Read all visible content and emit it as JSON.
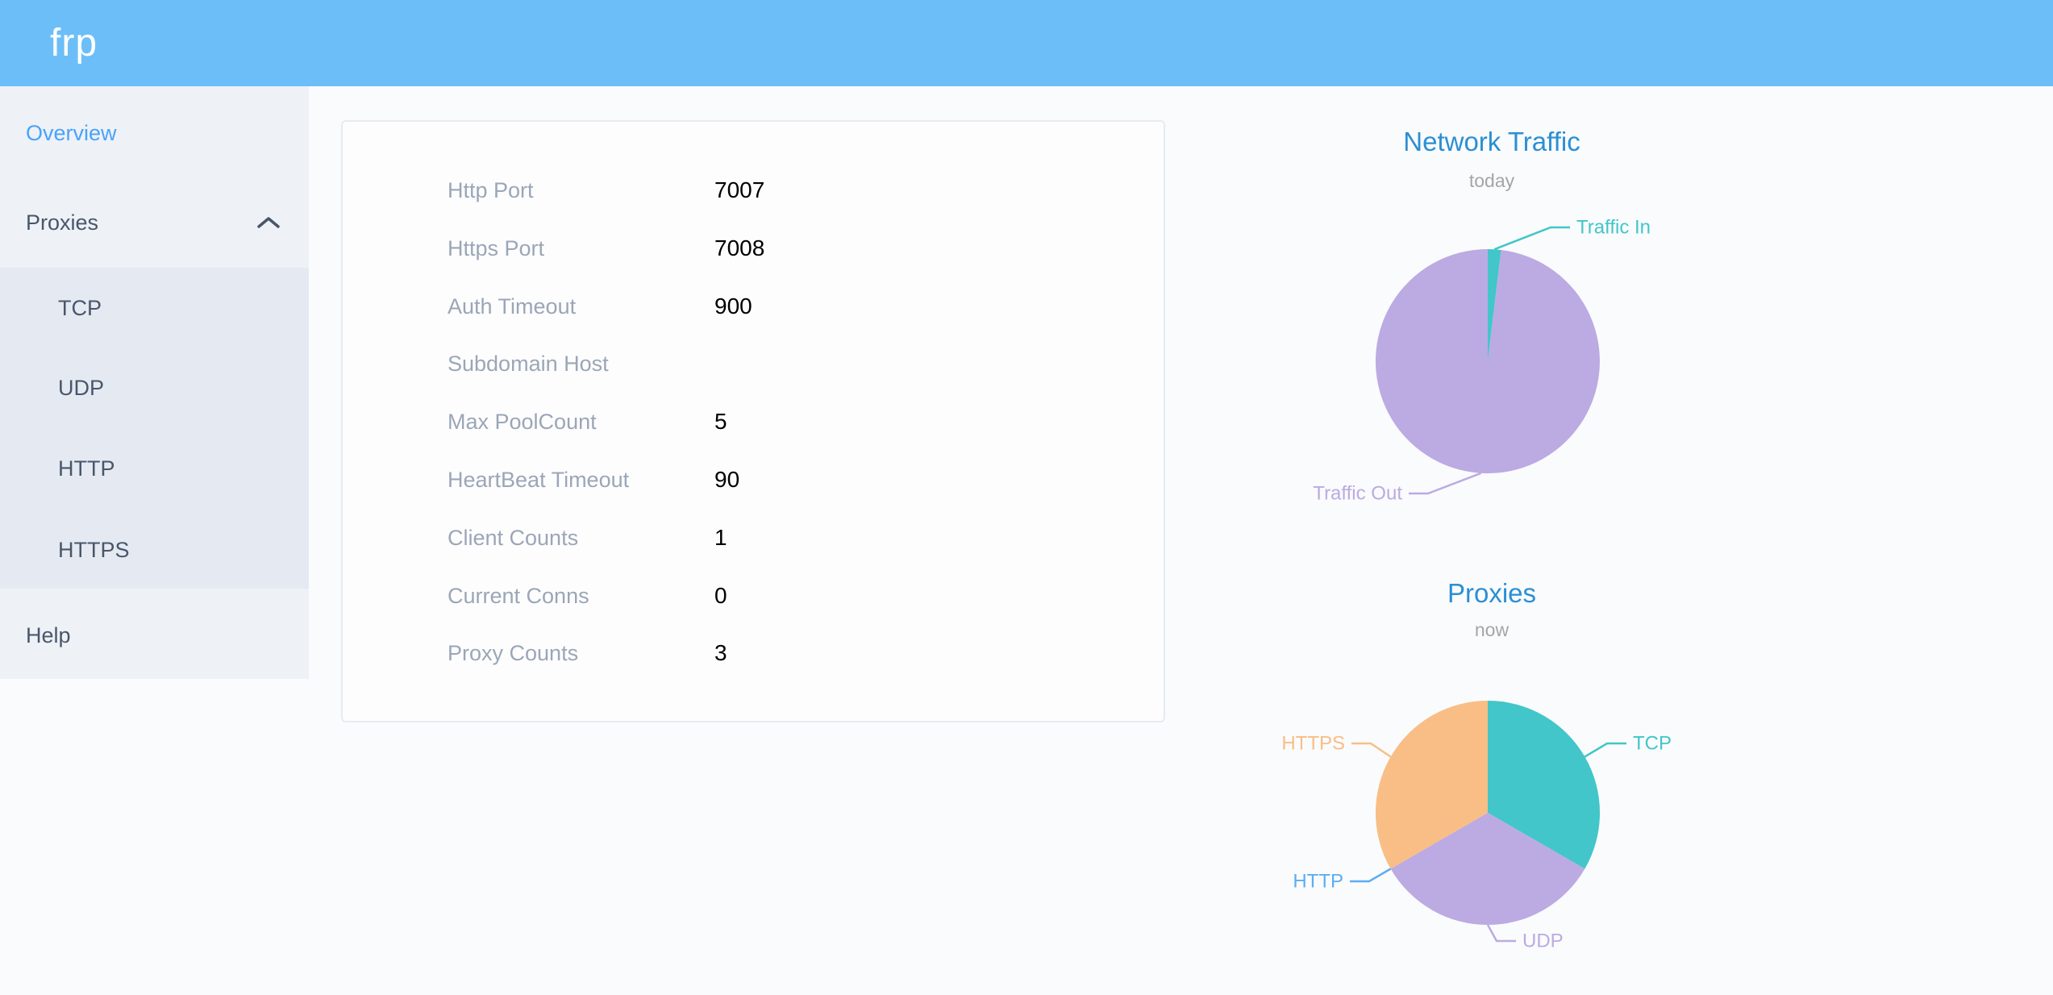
{
  "header": {
    "logo": "frp",
    "bg_color": "#6cbef8"
  },
  "sidebar": {
    "overview": "Overview",
    "proxies": "Proxies",
    "proxy_types": [
      "TCP",
      "UDP",
      "HTTP",
      "HTTPS"
    ],
    "help": "Help",
    "active_item": "Overview",
    "active_color": "#4aa3f9"
  },
  "overview_table": {
    "rows": [
      {
        "label": "Http Port",
        "value": "7007"
      },
      {
        "label": "Https Port",
        "value": "7008"
      },
      {
        "label": "Auth Timeout",
        "value": "900"
      },
      {
        "label": "Subdomain Host",
        "value": ""
      },
      {
        "label": "Max PoolCount",
        "value": "5"
      },
      {
        "label": "HeartBeat Timeout",
        "value": "90"
      },
      {
        "label": "Client Counts",
        "value": "1"
      },
      {
        "label": "Current Conns",
        "value": "0"
      },
      {
        "label": "Proxy Counts",
        "value": "3"
      }
    ]
  },
  "chart_data": [
    {
      "type": "pie",
      "title": "Network Traffic",
      "subtitle": "today",
      "legend_position": "none",
      "values_are_percent_estimates": true,
      "slices": [
        {
          "label": "Traffic In",
          "value": 1.9,
          "color": "#42c6c9"
        },
        {
          "label": "Traffic Out",
          "value": 98.1,
          "color": "#bcaae3"
        }
      ]
    },
    {
      "type": "pie",
      "title": "Proxies",
      "subtitle": "now",
      "legend_position": "none",
      "values_are_counts": true,
      "slices": [
        {
          "label": "TCP",
          "value": 1,
          "color": "#42c6c9"
        },
        {
          "label": "UDP",
          "value": 1,
          "color": "#bcaae3"
        },
        {
          "label": "HTTP",
          "value": 0,
          "color": "#5caef0"
        },
        {
          "label": "HTTPS",
          "value": 1,
          "color": "#f8be85"
        }
      ]
    }
  ]
}
